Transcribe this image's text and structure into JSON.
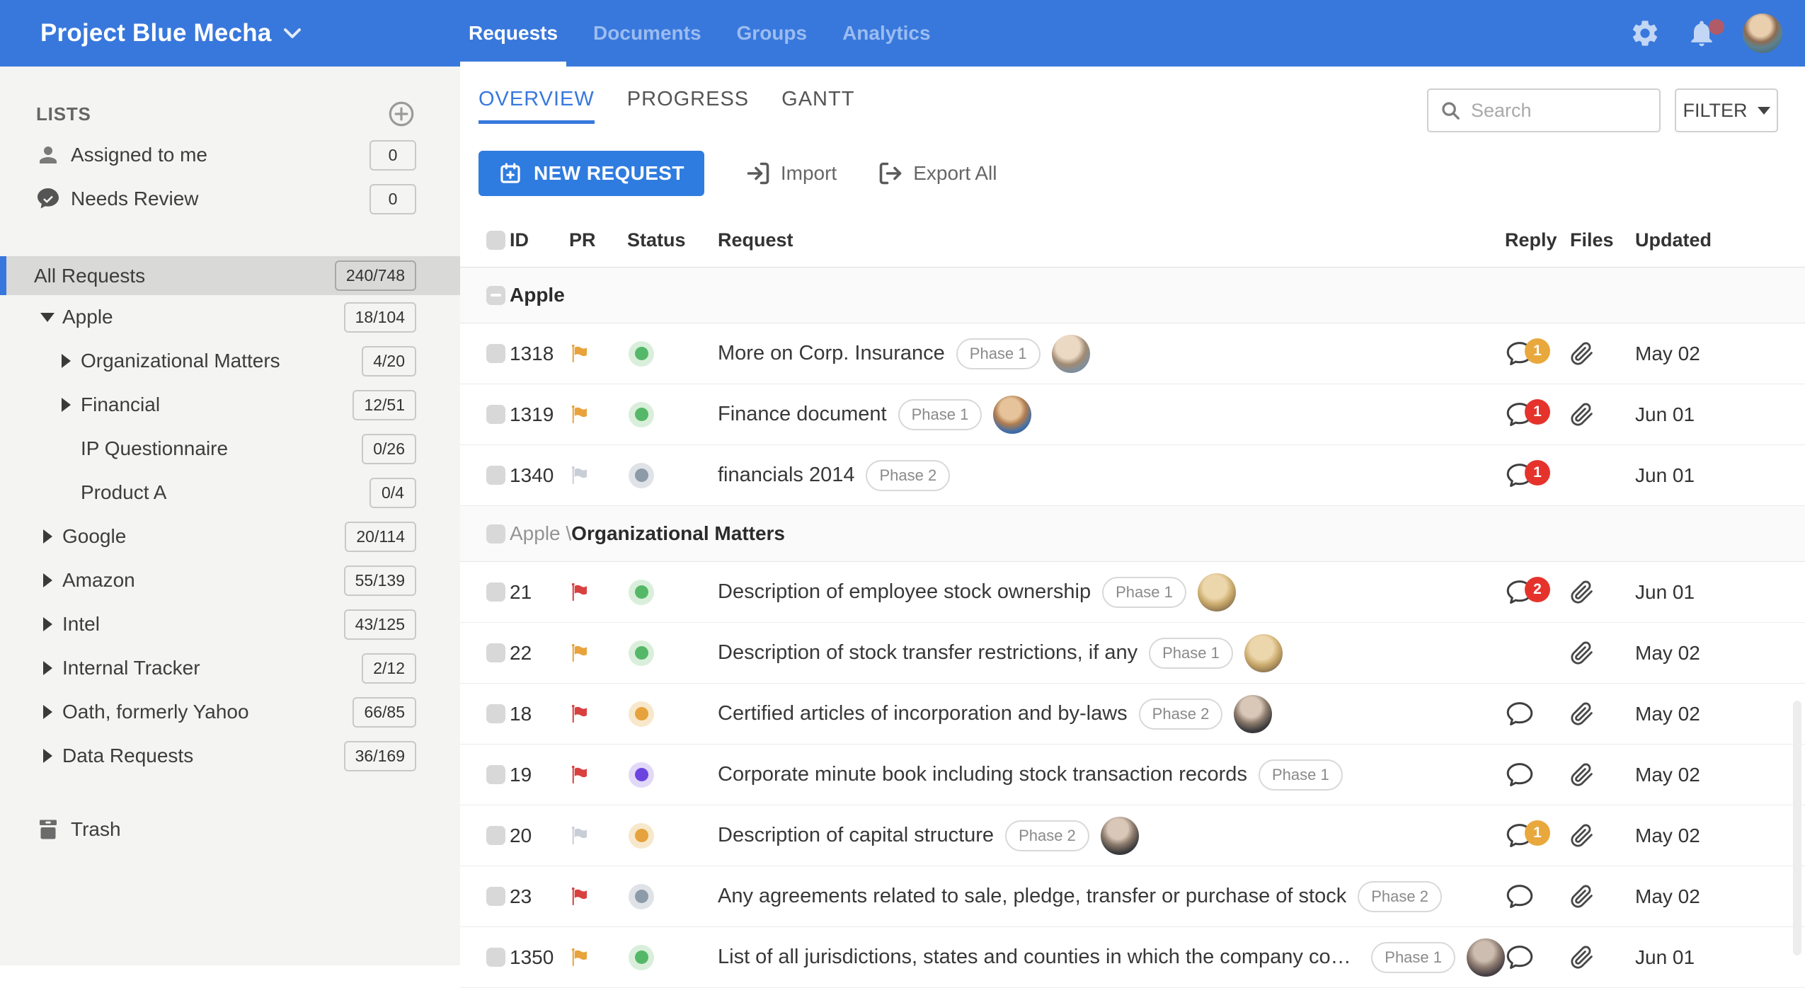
{
  "header": {
    "project_title": "Project Blue Mecha",
    "nav": [
      {
        "label": "Requests",
        "active": true
      },
      {
        "label": "Documents",
        "active": false
      },
      {
        "label": "Groups",
        "active": false
      },
      {
        "label": "Analytics",
        "active": false
      }
    ],
    "icons": [
      "gear-icon",
      "bell-icon",
      "user-avatar"
    ]
  },
  "sidebar": {
    "lists_title": "LISTS",
    "add_list_icon": "plus-circle-icon",
    "quick_lists": [
      {
        "label": "Assigned to me",
        "count": "0",
        "icon": "user-icon"
      },
      {
        "label": "Needs Review",
        "count": "0",
        "icon": "chat-check-icon"
      }
    ],
    "all_requests": {
      "label": "All Requests",
      "count": "240/748",
      "selected": true
    },
    "tree": [
      {
        "label": "Apple",
        "count": "18/104",
        "level": 1,
        "arrow": "down"
      },
      {
        "label": "Organizational Matters",
        "count": "4/20",
        "level": 2,
        "arrow": "right"
      },
      {
        "label": "Financial",
        "count": "12/51",
        "level": 2,
        "arrow": "right"
      },
      {
        "label": "IP Questionnaire",
        "count": "0/26",
        "level": 2,
        "arrow": "none"
      },
      {
        "label": "Product A",
        "count": "0/4",
        "level": 2,
        "arrow": "none"
      },
      {
        "label": "Google",
        "count": "20/114",
        "level": 1,
        "arrow": "right"
      },
      {
        "label": "Amazon",
        "count": "55/139",
        "level": 1,
        "arrow": "right"
      },
      {
        "label": "Intel",
        "count": "43/125",
        "level": 1,
        "arrow": "right"
      },
      {
        "label": "Internal Tracker",
        "count": "2/12",
        "level": 1,
        "arrow": "right"
      },
      {
        "label": "Oath, formerly Yahoo",
        "count": "66/85",
        "level": 1,
        "arrow": "right"
      },
      {
        "label": "Data Requests",
        "count": "36/169",
        "level": 1,
        "arrow": "right"
      }
    ],
    "trash_label": "Trash",
    "trash_icon": "trash-icon"
  },
  "toolbar": {
    "view_tabs": [
      {
        "label": "OVERVIEW",
        "active": true
      },
      {
        "label": "PROGRESS",
        "active": false
      },
      {
        "label": "GANTT",
        "active": false
      }
    ],
    "search_placeholder": "Search",
    "search_icon": "search-icon",
    "filter_label": "FILTER",
    "new_request_label": "NEW REQUEST",
    "new_request_icon": "calendar-plus-icon",
    "import_label": "Import",
    "import_icon": "import-icon",
    "export_label": "Export All",
    "export_icon": "export-icon"
  },
  "table": {
    "columns": {
      "id": "ID",
      "pr": "PR",
      "status": "Status",
      "request": "Request",
      "reply": "Reply",
      "files": "Files",
      "updated": "Updated"
    },
    "groups": [
      {
        "prefix": "",
        "name": "Apple",
        "checkbox_indeterminate": true,
        "rows": [
          {
            "id": "1318",
            "flag": "orange",
            "status": "green",
            "title": "More on Corp. Insurance",
            "phase": "Phase 1",
            "avatar": "v1",
            "bubble": true,
            "badge": "1",
            "badge_color": "orange",
            "file": true,
            "updated": "May 02"
          },
          {
            "id": "1319",
            "flag": "orange",
            "status": "green",
            "title": "Finance document",
            "phase": "Phase 1",
            "avatar": "v2",
            "bubble": true,
            "badge": "1",
            "badge_color": "red",
            "file": true,
            "updated": "Jun 01"
          },
          {
            "id": "1340",
            "flag": "gray",
            "status": "gray",
            "title": "financials 2014",
            "phase": "Phase 2",
            "avatar": null,
            "bubble": true,
            "badge": "1",
            "badge_color": "red",
            "file": false,
            "updated": "Jun 01"
          }
        ]
      },
      {
        "prefix": "Apple \\",
        "name": "Organizational Matters",
        "checkbox_indeterminate": false,
        "rows": [
          {
            "id": "21",
            "flag": "red",
            "status": "green",
            "title": "Description of employee stock ownership",
            "phase": "Phase 1",
            "avatar": "v3",
            "bubble": true,
            "badge": "2",
            "badge_color": "red",
            "file": true,
            "updated": "Jun 01"
          },
          {
            "id": "22",
            "flag": "orange",
            "status": "green",
            "title": "Description of stock transfer restrictions, if any",
            "phase": "Phase 1",
            "avatar": "v3",
            "bubble": false,
            "badge": null,
            "badge_color": null,
            "file": true,
            "updated": "May 02"
          },
          {
            "id": "18",
            "flag": "red",
            "status": "orange",
            "title": "Certified articles of incorporation and by-laws",
            "phase": "Phase 2",
            "avatar": "v4",
            "bubble": true,
            "badge": null,
            "badge_color": null,
            "file": true,
            "updated": "May 02"
          },
          {
            "id": "19",
            "flag": "red",
            "status": "purple",
            "title": "Corporate minute book including stock transaction records",
            "phase": "Phase 1",
            "avatar": null,
            "bubble": true,
            "badge": null,
            "badge_color": null,
            "file": true,
            "updated": "May 02"
          },
          {
            "id": "20",
            "flag": "gray",
            "status": "orange",
            "title": "Description of capital structure",
            "phase": "Phase 2",
            "avatar": "v4",
            "bubble": true,
            "badge": "1",
            "badge_color": "orange",
            "file": true,
            "updated": "May 02"
          },
          {
            "id": "23",
            "flag": "red",
            "status": "gray",
            "title": "Any agreements related to sale, pledge, transfer or purchase of stock",
            "phase": "Phase 2",
            "avatar": null,
            "bubble": true,
            "badge": null,
            "badge_color": null,
            "file": true,
            "updated": "May 02"
          },
          {
            "id": "1350",
            "flag": "orange",
            "status": "green",
            "title": "List of all jurisdictions, states and counties in which the company condu...",
            "phase": "Phase 1",
            "avatar": "v5",
            "bubble": true,
            "badge": null,
            "badge_color": null,
            "file": true,
            "updated": "Jun 01"
          }
        ]
      }
    ]
  },
  "colors": {
    "header_blue": "#3878dc",
    "accent": "#3878dc",
    "badge_red": "#e5332c",
    "badge_orange": "#e9a83c",
    "flag_orange": "#e8a33d",
    "flag_red": "#d94040",
    "flag_gray": "#c9ced6",
    "status_green": "#55b868",
    "status_orange": "#e6a23c",
    "status_purple": "#6c45e0",
    "status_gray": "#8d9aa8",
    "notification_dot": "#b25b68"
  }
}
